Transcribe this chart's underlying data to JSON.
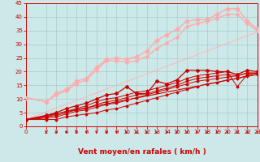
{
  "x": [
    0,
    2,
    3,
    4,
    5,
    6,
    7,
    8,
    9,
    10,
    11,
    12,
    13,
    14,
    15,
    16,
    17,
    18,
    19,
    20,
    21,
    22,
    23
  ],
  "lines": [
    {
      "y": [
        2.5,
        2.5,
        2.5,
        3.5,
        4.0,
        4.5,
        5.0,
        6.0,
        6.5,
        7.5,
        8.5,
        9.5,
        10.5,
        11.5,
        12.5,
        13.5,
        14.5,
        15.5,
        16.0,
        17.0,
        17.5,
        18.5,
        19.0
      ],
      "color": "#cc0000",
      "lw": 0.7,
      "marker": "D",
      "ms": 1.5
    },
    {
      "y": [
        2.5,
        3.0,
        3.5,
        4.5,
        5.5,
        6.0,
        7.0,
        8.0,
        8.5,
        9.5,
        10.5,
        11.5,
        12.5,
        13.5,
        14.5,
        15.5,
        16.5,
        17.0,
        17.5,
        18.0,
        18.5,
        19.5,
        19.5
      ],
      "color": "#cc0000",
      "lw": 0.7,
      "marker": "D",
      "ms": 1.5
    },
    {
      "y": [
        2.5,
        3.5,
        4.0,
        5.0,
        6.0,
        6.5,
        8.0,
        9.0,
        9.5,
        10.5,
        11.5,
        12.0,
        13.0,
        14.0,
        15.0,
        16.5,
        17.5,
        18.0,
        18.5,
        19.0,
        18.5,
        19.5,
        19.5
      ],
      "color": "#cc0000",
      "lw": 0.7,
      "marker": "D",
      "ms": 1.5
    },
    {
      "y": [
        2.5,
        3.5,
        4.5,
        5.5,
        6.5,
        7.5,
        9.0,
        10.0,
        10.5,
        11.5,
        12.5,
        13.0,
        14.0,
        15.0,
        16.0,
        17.5,
        18.5,
        19.0,
        19.5,
        20.0,
        14.5,
        19.0,
        19.5
      ],
      "color": "#cc0000",
      "lw": 0.7,
      "marker": "D",
      "ms": 1.5
    },
    {
      "y": [
        2.5,
        4.0,
        5.0,
        6.5,
        7.5,
        8.5,
        10.0,
        11.5,
        12.0,
        14.5,
        12.0,
        12.0,
        16.5,
        15.5,
        17.0,
        20.5,
        20.5,
        20.5,
        20.0,
        20.0,
        19.0,
        20.5,
        20.0
      ],
      "color": "#cc0000",
      "lw": 0.9,
      "marker": "D",
      "ms": 2.0
    },
    {
      "y": [
        10.5,
        9.0,
        11.5,
        13.0,
        15.5,
        17.0,
        20.5,
        24.0,
        24.0,
        23.5,
        24.0,
        25.5,
        28.5,
        30.5,
        32.5,
        36.5,
        37.5,
        38.5,
        39.5,
        41.0,
        41.0,
        37.5,
        35.0
      ],
      "color": "#ffaaaa",
      "lw": 0.9,
      "marker": "D",
      "ms": 2.0
    },
    {
      "y": [
        10.5,
        9.0,
        12.0,
        13.5,
        16.5,
        17.5,
        21.5,
        24.5,
        25.0,
        24.5,
        25.5,
        27.5,
        31.5,
        33.5,
        35.5,
        38.5,
        39.0,
        39.0,
        41.0,
        43.0,
        43.0,
        38.5,
        35.5
      ],
      "color": "#ffaaaa",
      "lw": 1.0,
      "marker": "D",
      "ms": 2.5
    }
  ],
  "ref_lines": [
    {
      "x0": 0,
      "y0": 2.5,
      "x1": 23,
      "y1": 34.5,
      "color": "#ffbbbb",
      "lw": 0.8
    },
    {
      "x0": 0,
      "y0": 2.5,
      "x1": 23,
      "y1": 19.0,
      "color": "#cc0000",
      "lw": 0.8
    }
  ],
  "bg_color": "#cce8e8",
  "grid_color": "#aacccc",
  "tick_color": "#cc0000",
  "label_color": "#cc0000",
  "xlabel": "Vent moyen/en rafales ( km/h )",
  "xlim": [
    0,
    23
  ],
  "ylim": [
    0,
    45
  ],
  "yticks": [
    0,
    5,
    10,
    15,
    20,
    25,
    30,
    35,
    40,
    45
  ],
  "xticks": [
    0,
    2,
    3,
    4,
    5,
    6,
    7,
    8,
    9,
    10,
    11,
    12,
    13,
    14,
    15,
    16,
    17,
    18,
    19,
    20,
    21,
    22,
    23
  ],
  "tick_fontsize": 5.0,
  "xlabel_fontsize": 6.5
}
